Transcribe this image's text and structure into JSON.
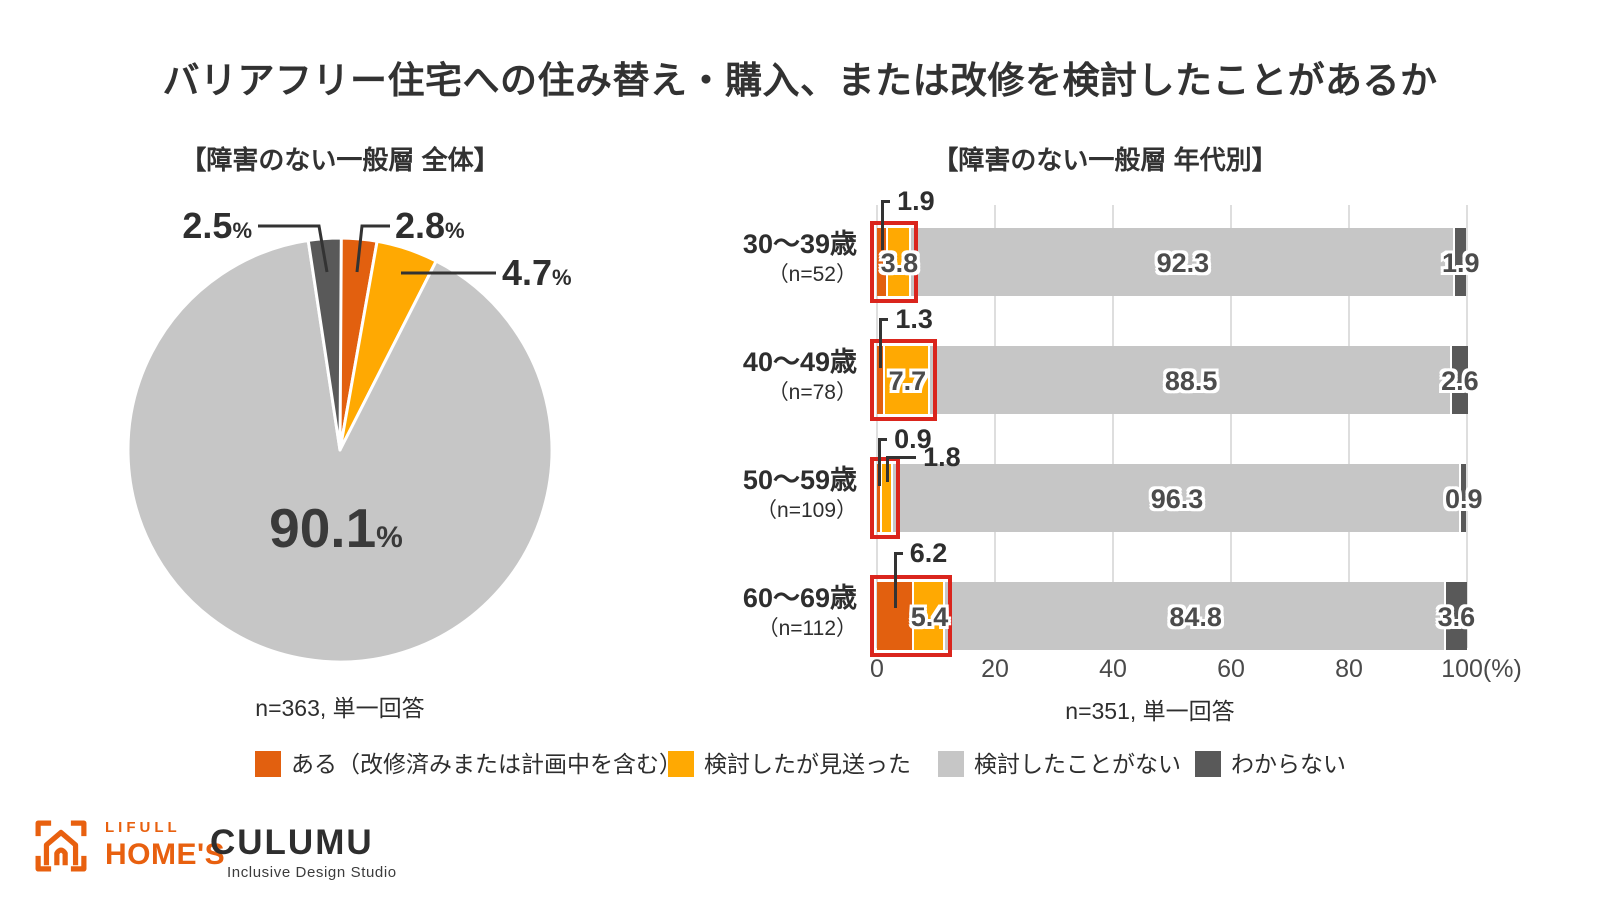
{
  "title": "バリアフリー住宅への住み替え・購入、または改修を検討したことがあるか",
  "colors": {
    "orange": "#e2600f",
    "yellow": "#ffa902",
    "light_gray": "#c6c6c6",
    "dark_gray": "#595959",
    "highlight_red": "#da251d",
    "text_dark": "#323232"
  },
  "pie_section": {
    "heading": "【障害のない一般層 全体】",
    "caption": "n=363, 単一回答"
  },
  "bar_section": {
    "heading": "【障害のない一般層 年代別】",
    "caption": "n=351, 単一回答",
    "axis_ticks": [
      "0",
      "20",
      "40",
      "60",
      "80",
      "100(%)"
    ]
  },
  "legend": [
    {
      "label": "ある（改修済みまたは計画中を含む）",
      "color_key": "orange"
    },
    {
      "label": "検討したが見送った",
      "color_key": "yellow"
    },
    {
      "label": "検討したことがない",
      "color_key": "light_gray"
    },
    {
      "label": "わからない",
      "color_key": "dark_gray"
    }
  ],
  "footer": {
    "lifull_top": "LIFULL",
    "lifull_bottom": "HOME'S",
    "culumu": "CULUMU",
    "culumu_sub": "Inclusive Design Studio"
  },
  "chart_data": [
    {
      "type": "pie",
      "title": "障害のない一般層 全体",
      "n_caption": "n=363, 単一回答",
      "labels": [
        "ある（改修済みまたは計画中を含む）",
        "検討したが見送った",
        "検討したことがない",
        "わからない"
      ],
      "values": [
        2.8,
        4.7,
        90.1,
        2.5
      ],
      "color_keys": [
        "orange",
        "yellow",
        "light_gray",
        "dark_gray"
      ],
      "unit": "%",
      "layout_note": "slices clockwise from 12 o'clock"
    },
    {
      "type": "bar",
      "orientation": "horizontal-stacked",
      "title": "障害のない一般層 年代別",
      "n_caption": "n=351, 単一回答",
      "categories": [
        "30〜39歳",
        "40〜49歳",
        "50〜59歳",
        "60〜69歳"
      ],
      "category_n": [
        "（n=52）",
        "（n=78）",
        "（n=109）",
        "（n=112）"
      ],
      "series_labels": [
        "ある（改修済みまたは計画中を含む）",
        "検討したが見送った",
        "検討したことがない",
        "わからない"
      ],
      "color_keys": [
        "orange",
        "yellow",
        "light_gray",
        "dark_gray"
      ],
      "rows": [
        [
          1.9,
          3.8,
          92.3,
          1.9
        ],
        [
          1.3,
          7.7,
          88.5,
          2.6
        ],
        [
          0.9,
          1.8,
          96.3,
          0.9
        ],
        [
          6.2,
          5.4,
          84.8,
          3.6
        ]
      ],
      "xlim": [
        0,
        100
      ],
      "x_ticks": [
        0,
        20,
        40,
        60,
        80,
        100
      ],
      "unit": "%",
      "grid": true,
      "highlight": "red box around first two segments of each row"
    }
  ]
}
